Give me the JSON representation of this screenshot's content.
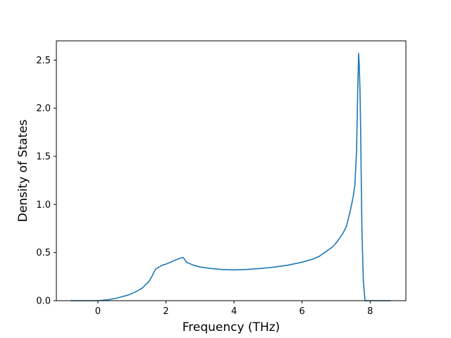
{
  "chart_data": {
    "type": "line",
    "title": "",
    "xlabel": "Frequency (THz)",
    "ylabel": "Density of States",
    "xlim": [
      -1.22,
      9.05
    ],
    "ylim": [
      0.0,
      2.7
    ],
    "xticks": [
      0,
      2,
      4,
      6,
      8
    ],
    "xtick_labels": [
      "0",
      "2",
      "4",
      "6",
      "8"
    ],
    "yticks": [
      0.0,
      0.5,
      1.0,
      1.5,
      2.0,
      2.5
    ],
    "ytick_labels": [
      "0.0",
      "0.5",
      "1.0",
      "1.5",
      "2.0",
      "2.5"
    ],
    "grid": false,
    "legend": "none",
    "series": [
      {
        "color": "#1f77b4",
        "x": [
          -0.8,
          -0.4,
          0.0,
          0.3,
          0.6,
          0.9,
          1.1,
          1.3,
          1.5,
          1.6,
          1.65,
          1.7,
          1.8,
          1.9,
          2.0,
          2.2,
          2.4,
          2.5,
          2.55,
          2.6,
          2.8,
          3.0,
          3.3,
          3.6,
          4.0,
          4.4,
          4.8,
          5.2,
          5.6,
          6.0,
          6.3,
          6.5,
          6.7,
          6.9,
          7.0,
          7.1,
          7.2,
          7.3,
          7.35,
          7.4,
          7.45,
          7.5,
          7.55,
          7.6,
          7.63,
          7.66,
          7.68,
          7.7,
          7.72,
          7.74,
          7.76,
          7.8,
          7.85,
          8.0,
          8.3,
          8.6
        ],
        "y": [
          0.0,
          0.0,
          0.0,
          0.01,
          0.03,
          0.06,
          0.09,
          0.13,
          0.2,
          0.26,
          0.3,
          0.33,
          0.35,
          0.37,
          0.38,
          0.41,
          0.44,
          0.45,
          0.43,
          0.4,
          0.37,
          0.35,
          0.335,
          0.325,
          0.32,
          0.325,
          0.335,
          0.35,
          0.37,
          0.4,
          0.43,
          0.46,
          0.51,
          0.56,
          0.6,
          0.65,
          0.7,
          0.77,
          0.84,
          0.91,
          0.99,
          1.08,
          1.2,
          1.55,
          2.1,
          2.57,
          2.45,
          2.2,
          1.8,
          1.2,
          0.7,
          0.2,
          0.0,
          0.0,
          0.0,
          0.0
        ]
      }
    ]
  }
}
